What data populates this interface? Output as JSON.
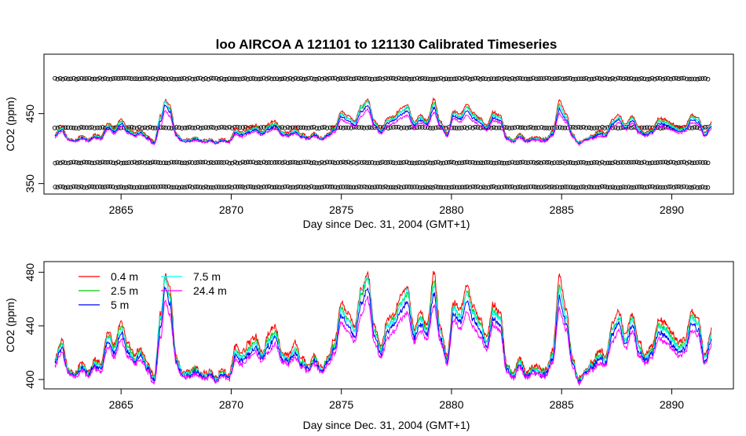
{
  "chart_data": [
    {
      "type": "scatter",
      "title": "loo   AIRCOA  A    121101  to  121130   Calibrated Timeseries",
      "xlabel": "Day since Dec. 31, 2004 (GMT+1)",
      "ylabel": "CO2 (ppm)",
      "xlim": [
        2861.5,
        2892.8
      ],
      "ylim": [
        335,
        535
      ],
      "x_ticks": [
        2865,
        2870,
        2875,
        2880,
        2885,
        2890
      ],
      "x_tick_labels": [
        "2865",
        "2870",
        "2875",
        "2880",
        "2885",
        "2890"
      ],
      "y_ticks": [
        350,
        450
      ],
      "y_tick_labels": [
        "350",
        "450"
      ],
      "calibration_levels_ppm": [
        345,
        380,
        430,
        500
      ],
      "calibration_x_range": [
        2862,
        2891.7
      ],
      "series_colors": [
        "#ff0000",
        "#00cc00",
        "#0000ff",
        "#00ffff",
        "#ff00ff"
      ]
    },
    {
      "type": "line",
      "xlabel": "Day since Dec. 31, 2004 (GMT+1)",
      "ylabel": "CO2 (ppm)",
      "xlim": [
        2861.5,
        2892.8
      ],
      "ylim": [
        393,
        488
      ],
      "x_ticks": [
        2865,
        2870,
        2875,
        2880,
        2885,
        2890
      ],
      "x_tick_labels": [
        "2865",
        "2870",
        "2875",
        "2880",
        "2885",
        "2890"
      ],
      "y_ticks": [
        400,
        440,
        480
      ],
      "y_tick_labels": [
        "400",
        "440",
        "480"
      ],
      "legend_position": "top-left",
      "series": [
        {
          "name": "0.4 m",
          "color": "#ff0000"
        },
        {
          "name": "2.5 m",
          "color": "#00cc00"
        },
        {
          "name": "5 m",
          "color": "#0000ff"
        },
        {
          "name": "7.5 m",
          "color": "#00ffff"
        },
        {
          "name": "24.4 m",
          "color": "#ff00ff"
        }
      ],
      "x": [
        2862.0,
        2862.3,
        2862.6,
        2862.9,
        2863.2,
        2863.5,
        2863.8,
        2864.1,
        2864.4,
        2864.7,
        2865.0,
        2865.3,
        2865.6,
        2865.9,
        2866.2,
        2866.5,
        2866.8,
        2867.0,
        2867.2,
        2867.5,
        2867.8,
        2868.1,
        2868.4,
        2868.7,
        2869.0,
        2869.3,
        2869.6,
        2869.9,
        2870.2,
        2870.5,
        2870.8,
        2871.1,
        2871.4,
        2871.7,
        2872.0,
        2872.3,
        2872.6,
        2872.9,
        2873.2,
        2873.5,
        2873.8,
        2874.1,
        2874.4,
        2874.7,
        2875.0,
        2875.3,
        2875.6,
        2875.9,
        2876.2,
        2876.5,
        2876.8,
        2877.1,
        2877.4,
        2877.7,
        2878.0,
        2878.3,
        2878.6,
        2878.9,
        2879.2,
        2879.5,
        2879.8,
        2880.1,
        2880.4,
        2880.7,
        2881.0,
        2881.3,
        2881.6,
        2881.9,
        2882.2,
        2882.5,
        2882.8,
        2883.1,
        2883.4,
        2883.7,
        2884.0,
        2884.3,
        2884.6,
        2884.9,
        2885.2,
        2885.5,
        2885.8,
        2886.1,
        2886.4,
        2886.7,
        2887.0,
        2887.3,
        2887.6,
        2887.9,
        2888.2,
        2888.5,
        2888.8,
        2889.1,
        2889.4,
        2889.7,
        2890.0,
        2890.3,
        2890.6,
        2890.9,
        2891.2,
        2891.5,
        2891.8
      ],
      "values": [
        [
          415,
          430,
          408,
          404,
          412,
          406,
          414,
          412,
          437,
          426,
          443,
          428,
          418,
          422,
          412,
          402,
          450,
          478,
          470,
          418,
          404,
          406,
          410,
          403,
          406,
          402,
          406,
          403,
          425,
          420,
          427,
          432,
          420,
          434,
          440,
          420,
          417,
          427,
          415,
          410,
          418,
          408,
          417,
          430,
          457,
          450,
          440,
          468,
          478,
          440,
          425,
          445,
          450,
          462,
          470,
          438,
          450,
          440,
          480,
          438,
          418,
          458,
          452,
          470,
          455,
          445,
          432,
          455,
          450,
          412,
          405,
          416,
          405,
          410,
          408,
          408,
          422,
          478,
          452,
          416,
          400,
          407,
          413,
          422,
          418,
          442,
          450,
          433,
          450,
          428,
          418,
          425,
          445,
          442,
          434,
          428,
          430,
          450,
          447,
          418,
          438
        ],
        [
          414,
          427,
          407,
          403,
          410,
          405,
          412,
          410,
          433,
          423,
          440,
          425,
          416,
          420,
          410,
          401,
          446,
          474,
          465,
          416,
          403,
          405,
          408,
          402,
          405,
          401,
          405,
          402,
          421,
          417,
          423,
          429,
          418,
          430,
          436,
          418,
          415,
          423,
          413,
          409,
          416,
          407,
          415,
          427,
          453,
          446,
          437,
          463,
          474,
          437,
          422,
          441,
          446,
          457,
          465,
          435,
          446,
          437,
          473,
          435,
          416,
          454,
          448,
          465,
          450,
          441,
          429,
          451,
          446,
          410,
          404,
          414,
          403,
          408,
          406,
          406,
          419,
          470,
          448,
          414,
          399,
          406,
          411,
          419,
          416,
          438,
          446,
          430,
          446,
          425,
          416,
          422,
          441,
          438,
          431,
          425,
          427,
          446,
          443,
          416,
          434
        ],
        [
          412,
          423,
          406,
          402,
          408,
          404,
          410,
          408,
          428,
          419,
          435,
          421,
          414,
          417,
          408,
          399,
          440,
          468,
          458,
          414,
          402,
          403,
          406,
          401,
          403,
          400,
          403,
          401,
          417,
          414,
          419,
          424,
          415,
          425,
          431,
          415,
          413,
          419,
          411,
          407,
          414,
          406,
          413,
          423,
          448,
          441,
          432,
          456,
          468,
          432,
          419,
          436,
          441,
          451,
          458,
          431,
          441,
          433,
          464,
          431,
          414,
          449,
          443,
          458,
          444,
          436,
          425,
          446,
          441,
          408,
          402,
          411,
          402,
          406,
          404,
          404,
          416,
          461,
          443,
          411,
          398,
          405,
          409,
          416,
          413,
          433,
          441,
          426,
          441,
          421,
          414,
          419,
          436,
          433,
          427,
          421,
          423,
          441,
          438,
          413,
          430
        ],
        [
          413,
          426,
          407,
          403,
          409,
          405,
          411,
          409,
          431,
          421,
          438,
          423,
          415,
          419,
          409,
          400,
          448,
          476,
          462,
          415,
          403,
          404,
          407,
          402,
          404,
          401,
          404,
          402,
          420,
          416,
          422,
          427,
          417,
          428,
          434,
          417,
          414,
          422,
          412,
          408,
          415,
          407,
          414,
          426,
          452,
          445,
          436,
          466,
          476,
          436,
          421,
          440,
          445,
          456,
          467,
          434,
          445,
          436,
          470,
          434,
          415,
          453,
          447,
          464,
          449,
          440,
          428,
          450,
          445,
          409,
          403,
          413,
          403,
          407,
          405,
          405,
          418,
          468,
          447,
          413,
          399,
          406,
          410,
          418,
          415,
          437,
          445,
          429,
          445,
          424,
          415,
          421,
          440,
          437,
          430,
          424,
          426,
          445,
          442,
          415,
          433
        ],
        [
          410,
          420,
          405,
          401,
          406,
          403,
          408,
          406,
          424,
          416,
          430,
          418,
          412,
          414,
          406,
          397,
          432,
          458,
          450,
          412,
          401,
          402,
          404,
          400,
          402,
          399,
          402,
          400,
          414,
          411,
          416,
          420,
          413,
          421,
          426,
          413,
          411,
          416,
          409,
          406,
          412,
          405,
          411,
          420,
          442,
          436,
          428,
          448,
          460,
          428,
          416,
          431,
          436,
          445,
          450,
          428,
          436,
          430,
          455,
          428,
          412,
          444,
          438,
          450,
          439,
          431,
          422,
          441,
          436,
          406,
          401,
          409,
          401,
          404,
          403,
          403,
          413,
          452,
          438,
          409,
          397,
          404,
          407,
          413,
          411,
          428,
          436,
          423,
          436,
          418,
          412,
          416,
          431,
          428,
          423,
          418,
          420,
          436,
          433,
          411,
          426
        ]
      ]
    }
  ]
}
